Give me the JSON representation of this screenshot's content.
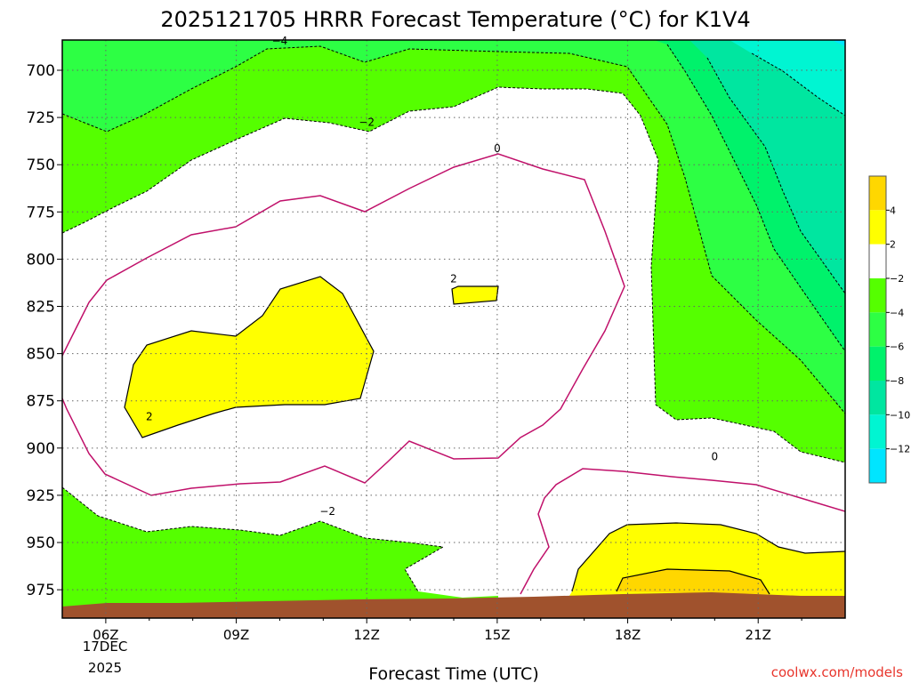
{
  "chart_data": {
    "type": "heatmap",
    "title": "2025121705 HRRR Forecast Temperature (°C) for K1V4",
    "xlabel": "Forecast Time (UTC)",
    "ylabel": "",
    "x_ticks": [
      "06Z",
      "09Z",
      "12Z",
      "15Z",
      "18Z",
      "21Z"
    ],
    "x_hours": [
      6,
      9,
      12,
      15,
      18,
      21
    ],
    "x_range_hours": [
      5,
      23
    ],
    "date_label": [
      "17DEC",
      "2025"
    ],
    "y_ticks": [
      700,
      725,
      750,
      775,
      800,
      825,
      850,
      875,
      900,
      925,
      950,
      975
    ],
    "y_range_hpa": [
      684,
      990
    ],
    "grid": true,
    "colorbar": {
      "levels": [
        4,
        2,
        -2,
        -4,
        -6,
        -8,
        -10,
        -12
      ],
      "bins": [
        {
          "range": "> 4",
          "color": "#ffd700"
        },
        {
          "range": "2 to 4",
          "color": "#ffff00"
        },
        {
          "range": "-2 to 2",
          "color": "#ffffff"
        },
        {
          "range": "-4 to -2",
          "color": "#55ff00"
        },
        {
          "range": "-6 to -4",
          "color": "#2dff44"
        },
        {
          "range": "-8 to -6",
          "color": "#00f26b"
        },
        {
          "range": "-10 to -8",
          "color": "#00e6a0"
        },
        {
          "range": "-12 to -10",
          "color": "#00f5d2"
        },
        {
          "range": "< -12",
          "color": "#00e5ff"
        }
      ]
    },
    "contour_labels": [
      {
        "text": "-4",
        "hour": 10.0,
        "hpa": 684
      },
      {
        "text": "-2",
        "hour": 12.0,
        "hpa": 727
      },
      {
        "text": "0",
        "hour": 15.0,
        "hpa": 741
      },
      {
        "text": "2",
        "hour": 14.0,
        "hpa": 810
      },
      {
        "text": "2",
        "hour": 7.0,
        "hpa": 883
      },
      {
        "text": "-2",
        "hour": 11.1,
        "hpa": 933
      },
      {
        "text": "0",
        "hour": 20.0,
        "hpa": 904
      }
    ],
    "ground_color": "#a0522d",
    "credit": "coolwx.com/models"
  }
}
